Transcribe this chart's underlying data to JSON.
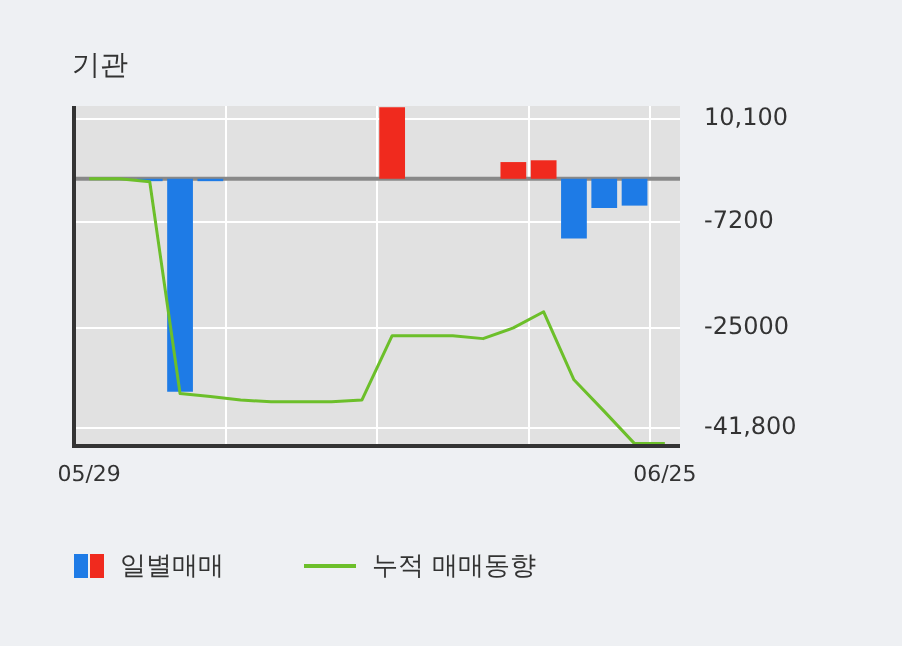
{
  "chart_data": {
    "type": "bar",
    "title": "기관",
    "categories": [
      "05/29",
      null,
      null,
      null,
      null,
      null,
      null,
      null,
      null,
      null,
      null,
      null,
      null,
      null,
      null,
      null,
      null,
      null,
      null,
      "06/25"
    ],
    "series": [
      {
        "name": "일별매매",
        "colors": [
          "#1e7be6",
          "#1e7be6",
          "#1e7be6",
          "#1e7be6",
          "#1e7be6",
          "#1e7be6",
          "#1e7be6",
          "#1e7be6",
          "#1e7be6",
          "#1e7be6",
          "#f02a1e",
          "#1e7be6",
          "#1e7be6",
          "#1e7be6",
          "#f02a1e",
          "#f02a1e",
          "#1e7be6",
          "#1e7be6",
          "#1e7be6",
          "#1e7be6"
        ],
        "values": [
          null,
          null,
          -400,
          -35700,
          -400,
          null,
          null,
          null,
          null,
          null,
          12000,
          null,
          null,
          null,
          2800,
          3100,
          -10000,
          -4900,
          -4500,
          null
        ]
      },
      {
        "type": "line",
        "name": "누적 매매동향",
        "color": "#6cbf2a",
        "values": [
          0,
          0,
          -500,
          -36000,
          -36500,
          -37100,
          -37400,
          -37400,
          -37400,
          -37100,
          -26300,
          -26300,
          -26300,
          -26800,
          -25000,
          -22300,
          -33700,
          -39000,
          -44400,
          -44400
        ]
      }
    ],
    "ylim": [
      -44800,
      12200
    ],
    "yticks": [
      {
        "value": 10100,
        "label": "10,100"
      },
      -7200,
      -25000,
      {
        "value": -41800,
        "label": "-41,800"
      }
    ],
    "ref_lines": [
      {
        "axis": "y",
        "value": 0,
        "color": "#888888"
      }
    ],
    "grid": true,
    "legend": "bottom",
    "marker": "none"
  }
}
